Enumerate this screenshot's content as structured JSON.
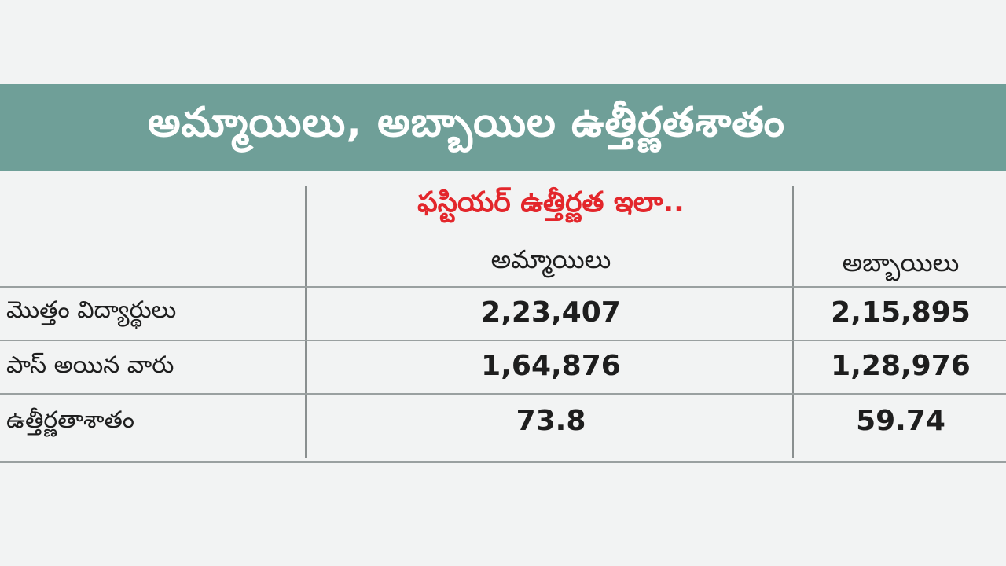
{
  "title": "అమ్మాయిలు, అబ్బాయిల ఉత్తీర్ణతశాతం",
  "subtitle": "ఫస్టియర్ ఉత్తీర్ణత ఇలా..",
  "columns": [
    "అమ్మాయిలు",
    "అబ్బాయిలు"
  ],
  "rows": [
    {
      "label": "మొత్తం విద్యార్థులు",
      "girls": "2,23,407",
      "boys": "2,15,895"
    },
    {
      "label": "పాస్ అయిన వారు",
      "girls": "1,64,876",
      "boys": "1,28,976"
    },
    {
      "label": "ఉత్తీర్ణతాశాతం",
      "girls": "73.8",
      "boys": "59.74"
    }
  ],
  "colors": {
    "title_band": "#6f9f98",
    "subtitle": "#e3262b",
    "background": "#f2f3f3"
  }
}
